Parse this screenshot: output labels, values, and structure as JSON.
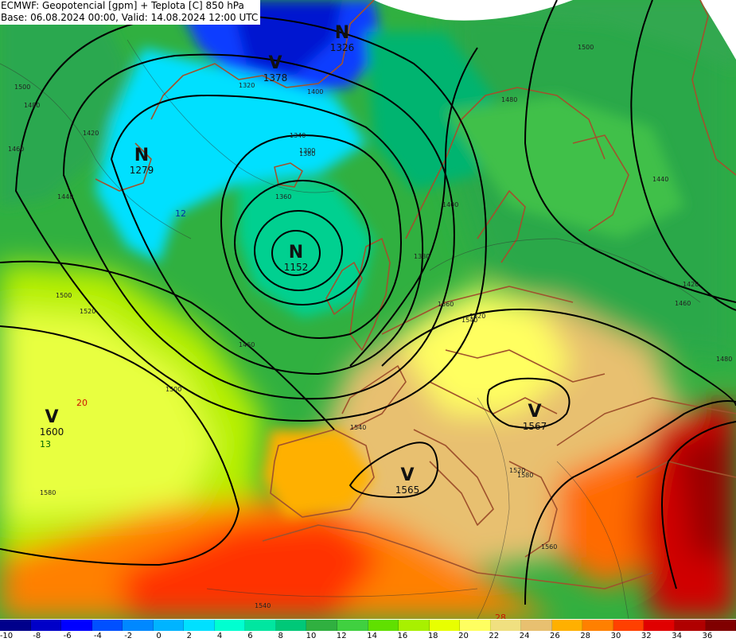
{
  "header": {
    "title": "ECMWF: Geopotencial [gpm] + Teplota [C] 850 hPa",
    "subtitle": "Base: 06.08.2024 00:00, Valid: 14.08.2024 12:00 UTC"
  },
  "map": {
    "pressure_centers": [
      {
        "letter": "N",
        "value": "1326"
      },
      {
        "letter": "V",
        "value": "1378"
      },
      {
        "letter": "N",
        "value": "1279"
      },
      {
        "letter": "N",
        "value": "1152"
      },
      {
        "letter": "V",
        "value": "1600"
      },
      {
        "letter": "V",
        "value": "1567"
      },
      {
        "letter": "V",
        "value": "1565"
      }
    ],
    "isoline_labels": [
      "1500",
      "1480",
      "1460",
      "1440",
      "1420",
      "1400",
      "1380",
      "1360",
      "1340",
      "1320",
      "1300",
      "1380",
      "1400",
      "1440",
      "1420",
      "1500",
      "1520",
      "1500",
      "1460",
      "1480",
      "1560",
      "1540",
      "1520",
      "1580",
      "1540",
      "1520",
      "1580",
      "1560",
      "1540",
      "1500",
      "1460",
      "1480"
    ],
    "temperature_labels": [
      {
        "text": "20",
        "color": "#cc1100"
      },
      {
        "text": "13",
        "color": "#006600"
      },
      {
        "text": "12",
        "color": "#0033aa"
      },
      {
        "text": "28",
        "color": "#cc1100"
      }
    ]
  },
  "legend": {
    "ticks": [
      "-10",
      "-8",
      "-6",
      "-4",
      "-2",
      "0",
      "2",
      "4",
      "6",
      "8",
      "10",
      "12",
      "14",
      "16",
      "18",
      "20",
      "22",
      "24",
      "26",
      "28",
      "30",
      "32",
      "34",
      "36"
    ],
    "colors": [
      "#00008b",
      "#0000c8",
      "#0000ff",
      "#0050ff",
      "#0088ff",
      "#00b4ff",
      "#00e0ff",
      "#00ffd0",
      "#00e6a0",
      "#00c878",
      "#30b040",
      "#40d040",
      "#60e000",
      "#a8f000",
      "#e8ff00",
      "#ffff60",
      "#f0e080",
      "#e8c070",
      "#ffb000",
      "#ff8000",
      "#ff4000",
      "#e00000",
      "#b00000",
      "#800000"
    ]
  }
}
